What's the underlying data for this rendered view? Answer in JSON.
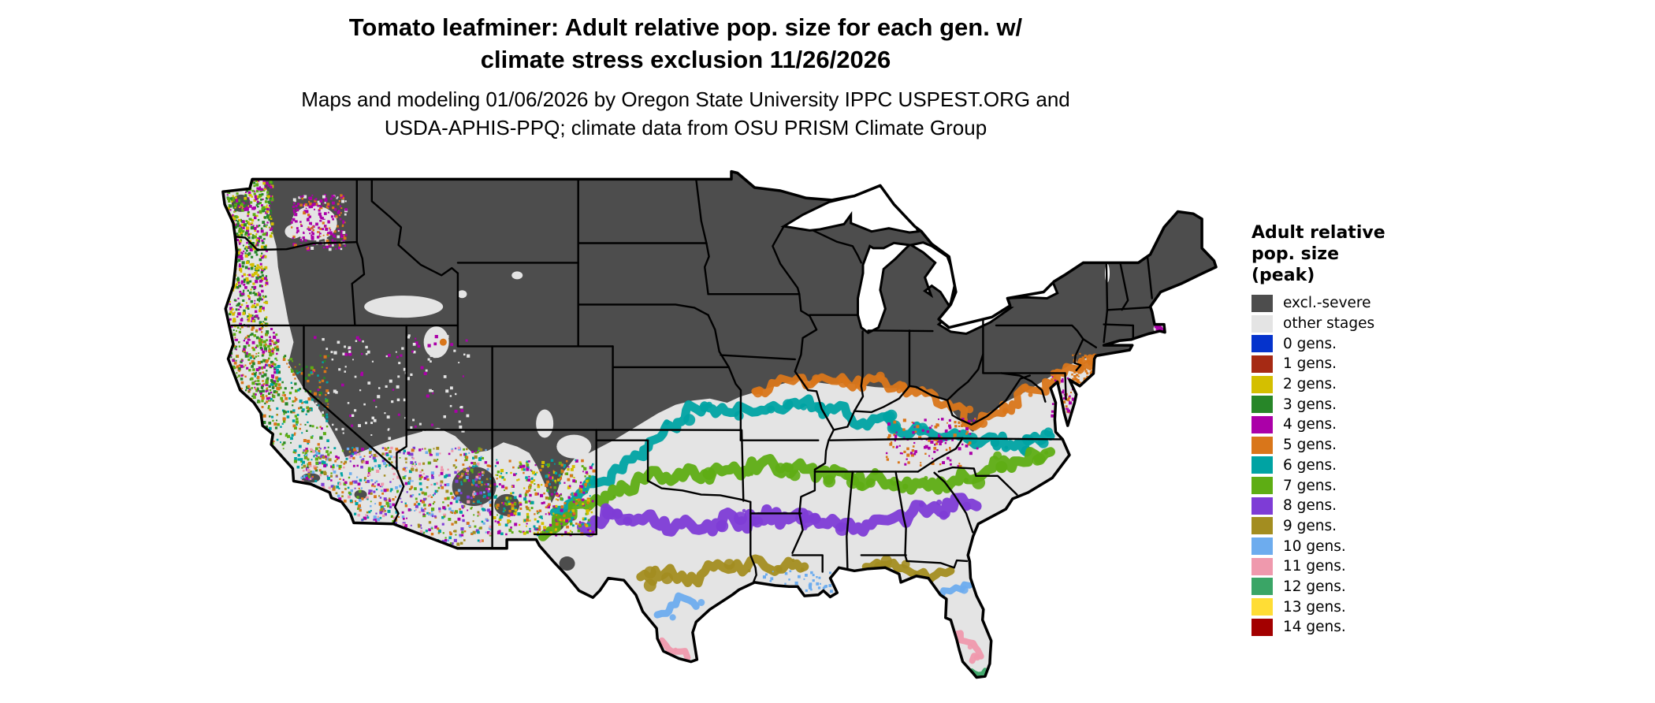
{
  "header": {
    "title_line1": "Tomato leafminer: Adult relative pop. size for each gen. w/",
    "title_line2": "climate stress exclusion 11/26/2026",
    "subtitle_line1": "Maps and modeling 01/06/2026 by Oregon State University IPPC USPEST.ORG and",
    "subtitle_line2": "USDA-APHIS-PPQ; climate data from OSU PRISM Climate Group"
  },
  "legend": {
    "title_line1": "Adult relative",
    "title_line2": "pop. size",
    "title_line3": "(peak)",
    "entries": [
      {
        "label": "excl.-severe",
        "color": "#4d4d4d"
      },
      {
        "label": "other stages",
        "color": "#e4e4e4"
      },
      {
        "label": "0 gens.",
        "color": "#0533cc"
      },
      {
        "label": "1 gens.",
        "color": "#a62a14"
      },
      {
        "label": "2 gens.",
        "color": "#d4bf00"
      },
      {
        "label": "3 gens.",
        "color": "#278628"
      },
      {
        "label": "4 gens.",
        "color": "#ab00a8"
      },
      {
        "label": "5 gens.",
        "color": "#d9761a"
      },
      {
        "label": "6 gens.",
        "color": "#00a3a3"
      },
      {
        "label": "7 gens.",
        "color": "#5ead14"
      },
      {
        "label": "8 gens.",
        "color": "#7e3cd6"
      },
      {
        "label": "9 gens.",
        "color": "#a38d20"
      },
      {
        "label": "10 gens.",
        "color": "#6dacee"
      },
      {
        "label": "11 gens.",
        "color": "#ef99ad"
      },
      {
        "label": "12 gens.",
        "color": "#3aa566"
      },
      {
        "label": "13 gens.",
        "color": "#ffdd35"
      },
      {
        "label": "14 gens.",
        "color": "#a30000"
      }
    ]
  },
  "map": {
    "background_color": "#ffffff",
    "land_base_color": "#e4e4e4",
    "excluded_color": "#4d4d4d",
    "border_color": "#000000"
  }
}
